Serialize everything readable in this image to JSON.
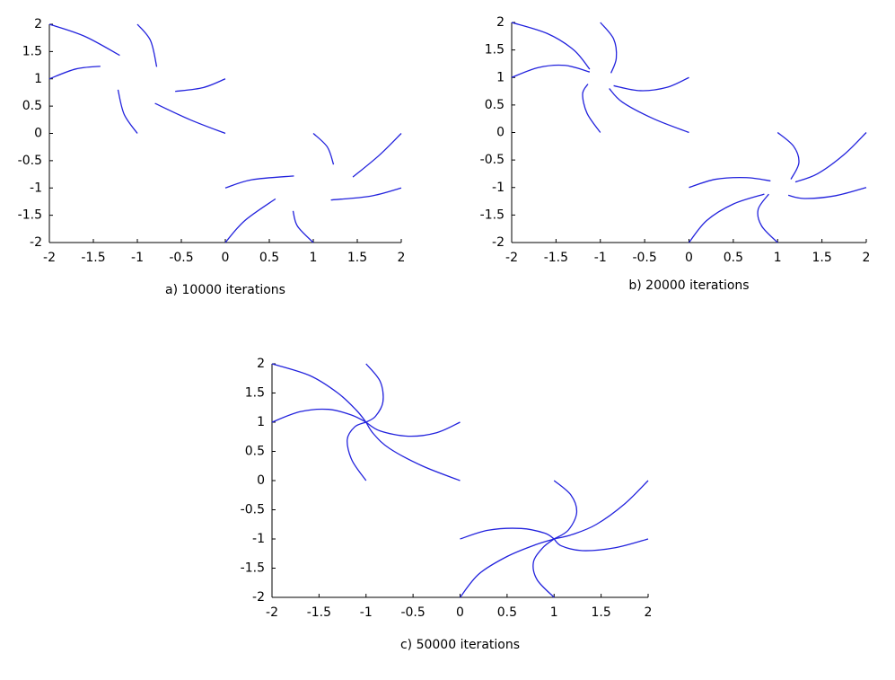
{
  "chart_data": [
    {
      "type": "line",
      "caption": "a) 10000 iterations",
      "xlim": [
        -2,
        2
      ],
      "ylim": [
        -2,
        2
      ],
      "xticks": [
        -2,
        -1.5,
        -1,
        -0.5,
        0,
        0.5,
        1,
        1.5,
        2
      ],
      "yticks": [
        -2,
        -1.5,
        -1,
        -0.5,
        0,
        0.5,
        1,
        1.5,
        2
      ],
      "color": "#2222dd",
      "series": [
        {
          "x": [
            -2,
            -1.6,
            -1.2
          ],
          "values": [
            2,
            1.78,
            1.43
          ]
        },
        {
          "x": [
            -2,
            -1.7,
            -1.42
          ],
          "values": [
            1,
            1.18,
            1.23
          ]
        },
        {
          "x": [
            -1,
            -0.85,
            -0.78
          ],
          "values": [
            2,
            1.7,
            1.22
          ]
        },
        {
          "x": [
            0,
            -0.25,
            -0.57
          ],
          "values": [
            1,
            0.84,
            0.77
          ]
        },
        {
          "x": [
            0,
            -0.4,
            -0.8
          ],
          "values": [
            0,
            0.25,
            0.55
          ]
        },
        {
          "x": [
            -1,
            -1.15,
            -1.22
          ],
          "values": [
            0,
            0.35,
            0.8
          ]
        },
        {
          "x": [
            0,
            0.22,
            0.57
          ],
          "values": [
            -2,
            -1.6,
            -1.2
          ]
        },
        {
          "x": [
            1,
            0.82,
            0.77
          ],
          "values": [
            -2,
            -1.7,
            -1.42
          ]
        },
        {
          "x": [
            0,
            0.3,
            0.78
          ],
          "values": [
            -1,
            -0.85,
            -0.78
          ]
        },
        {
          "x": [
            1,
            1.16,
            1.23
          ],
          "values": [
            0,
            -0.25,
            -0.57
          ]
        },
        {
          "x": [
            2,
            1.75,
            1.45
          ],
          "values": [
            0,
            -0.4,
            -0.8
          ]
        },
        {
          "x": [
            2,
            1.65,
            1.2
          ],
          "values": [
            -1,
            -1.15,
            -1.22
          ]
        }
      ]
    },
    {
      "type": "line",
      "caption": "b) 20000 iterations",
      "xlim": [
        -2,
        2
      ],
      "ylim": [
        -2,
        2
      ],
      "xticks": [
        -2,
        -1.5,
        -1,
        -0.5,
        0,
        0.5,
        1,
        1.5,
        2
      ],
      "yticks": [
        -2,
        -1.5,
        -1,
        -0.5,
        0,
        0.5,
        1,
        1.5,
        2
      ],
      "color": "#2222dd",
      "series": [
        {
          "x": [
            -2,
            -1.6,
            -1.3,
            -1.12
          ],
          "values": [
            2,
            1.8,
            1.5,
            1.15
          ]
        },
        {
          "x": [
            -2,
            -1.7,
            -1.4,
            -1.12
          ],
          "values": [
            1,
            1.18,
            1.22,
            1.1
          ]
        },
        {
          "x": [
            -1,
            -0.85,
            -0.82,
            -0.88
          ],
          "values": [
            2,
            1.7,
            1.35,
            1.08
          ]
        },
        {
          "x": [
            0,
            -0.25,
            -0.55,
            -0.85
          ],
          "values": [
            1,
            0.82,
            0.76,
            0.85
          ]
        },
        {
          "x": [
            0,
            -0.4,
            -0.75,
            -0.9
          ],
          "values": [
            0,
            0.25,
            0.55,
            0.8
          ]
        },
        {
          "x": [
            -1,
            -1.15,
            -1.2,
            -1.14
          ],
          "values": [
            0,
            0.35,
            0.7,
            0.88
          ]
        },
        {
          "x": [
            0,
            0.2,
            0.5,
            0.85
          ],
          "values": [
            -2,
            -1.6,
            -1.3,
            -1.12
          ]
        },
        {
          "x": [
            1,
            0.82,
            0.78,
            0.9
          ],
          "values": [
            -2,
            -1.7,
            -1.4,
            -1.12
          ]
        },
        {
          "x": [
            0,
            0.3,
            0.65,
            0.92
          ],
          "values": [
            -1,
            -0.85,
            -0.82,
            -0.88
          ]
        },
        {
          "x": [
            1,
            1.18,
            1.24,
            1.15
          ],
          "values": [
            0,
            -0.25,
            -0.55,
            -0.85
          ]
        },
        {
          "x": [
            2,
            1.75,
            1.45,
            1.2
          ],
          "values": [
            0,
            -0.4,
            -0.75,
            -0.9
          ]
        },
        {
          "x": [
            2,
            1.65,
            1.3,
            1.12
          ],
          "values": [
            -1,
            -1.15,
            -1.2,
            -1.14
          ]
        }
      ]
    },
    {
      "type": "line",
      "caption": "c) 50000 iterations",
      "xlim": [
        -2,
        2
      ],
      "ylim": [
        -2,
        2
      ],
      "xticks": [
        -2,
        -1.5,
        -1,
        -0.5,
        0,
        0.5,
        1,
        1.5,
        2
      ],
      "yticks": [
        -2,
        -1.5,
        -1,
        -0.5,
        0,
        0.5,
        1,
        1.5,
        2
      ],
      "color": "#2222dd",
      "series": [
        {
          "x": [
            -2,
            -1.6,
            -1.3,
            -1.1,
            -1
          ],
          "values": [
            2,
            1.8,
            1.5,
            1.2,
            1
          ]
        },
        {
          "x": [
            -2,
            -1.7,
            -1.4,
            -1.15,
            -1
          ],
          "values": [
            1,
            1.18,
            1.22,
            1.12,
            1
          ]
        },
        {
          "x": [
            -1,
            -0.85,
            -0.82,
            -0.9,
            -1
          ],
          "values": [
            2,
            1.7,
            1.35,
            1.1,
            1
          ]
        },
        {
          "x": [
            0,
            -0.25,
            -0.55,
            -0.85,
            -1
          ],
          "values": [
            1,
            0.82,
            0.76,
            0.85,
            1
          ]
        },
        {
          "x": [
            0,
            -0.4,
            -0.75,
            -0.92,
            -1
          ],
          "values": [
            0,
            0.25,
            0.55,
            0.8,
            1
          ]
        },
        {
          "x": [
            -1,
            -1.15,
            -1.2,
            -1.12,
            -1
          ],
          "values": [
            0,
            0.35,
            0.7,
            0.92,
            1
          ]
        },
        {
          "x": [
            0,
            0.2,
            0.5,
            0.8,
            1
          ],
          "values": [
            -2,
            -1.6,
            -1.3,
            -1.1,
            -1
          ]
        },
        {
          "x": [
            1,
            0.82,
            0.78,
            0.88,
            1
          ],
          "values": [
            -2,
            -1.7,
            -1.4,
            -1.15,
            -1
          ]
        },
        {
          "x": [
            0,
            0.3,
            0.65,
            0.9,
            1
          ],
          "values": [
            -1,
            -0.85,
            -0.82,
            -0.9,
            -1
          ]
        },
        {
          "x": [
            1,
            1.18,
            1.24,
            1.15,
            1
          ],
          "values": [
            0,
            -0.25,
            -0.55,
            -0.85,
            -1
          ]
        },
        {
          "x": [
            2,
            1.75,
            1.45,
            1.2,
            1
          ],
          "values": [
            0,
            -0.4,
            -0.75,
            -0.92,
            -1
          ]
        },
        {
          "x": [
            2,
            1.65,
            1.3,
            1.08,
            1
          ],
          "values": [
            -1,
            -1.15,
            -1.2,
            -1.12,
            -1
          ]
        }
      ]
    }
  ]
}
